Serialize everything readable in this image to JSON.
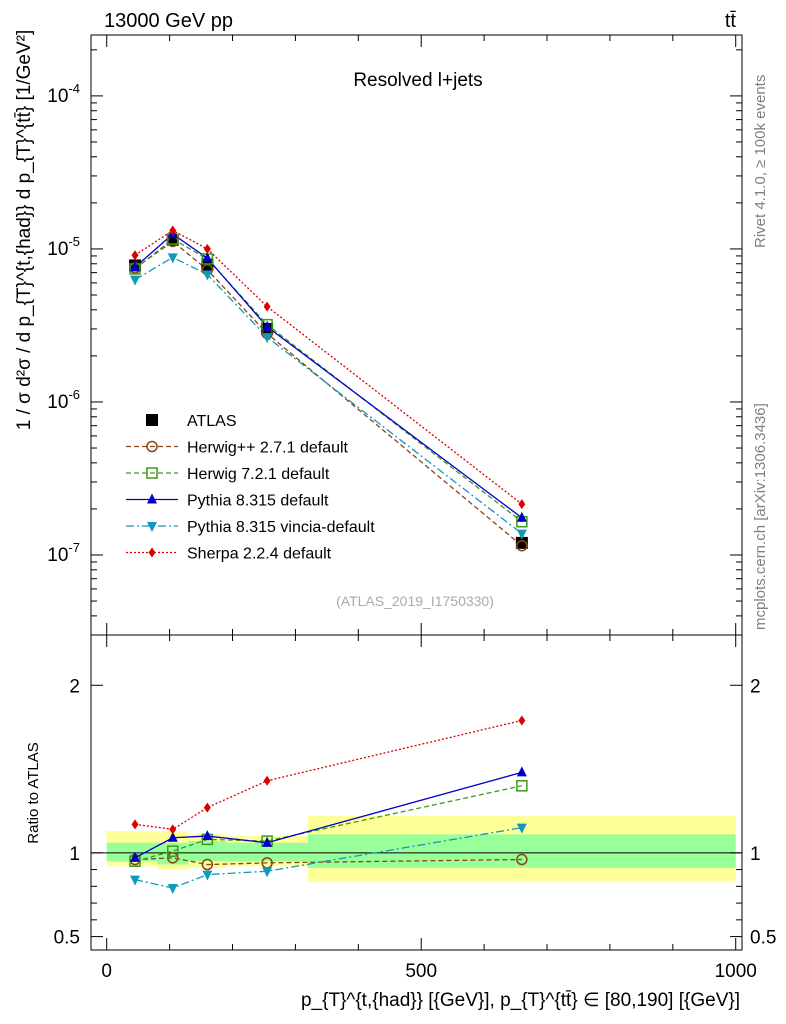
{
  "header": {
    "left": "13000 GeV pp",
    "right": "tt̄"
  },
  "side": {
    "rivet": "Rivet 4.1.0, ≥ 100k events",
    "mcplots": "mcplots.cern.ch [arXiv:1306.3436]"
  },
  "chart_data": [
    {
      "type": "line",
      "title": "Resolved l+jets",
      "watermark": "(ATLAS_2019_I1750330)",
      "ylabel": "1 / σ d²σ / d p_{T}^{t,{had}} d p_{T}^{tt̄} [1/GeV²]",
      "yscale": "log",
      "ylim": [
        3e-08,
        0.00025
      ],
      "xlim": [
        -25,
        1010
      ],
      "y_tick_labels": [
        "10^-7",
        "10^-6",
        "10^-5",
        "10^-4"
      ],
      "y_tick_values": [
        1e-07,
        1e-06,
        1e-05,
        0.0001
      ],
      "x": [
        45,
        105,
        160,
        255,
        660
      ],
      "series": [
        {
          "name": "ATLAS",
          "marker": "square",
          "color": "#000000",
          "values": [
            7.8e-06,
            1.15e-05,
            7.9e-06,
            3e-06,
            1.2e-07
          ]
        },
        {
          "name": "Herwig++ 2.7.1 default",
          "marker": "circle-open",
          "color": "#8B4513",
          "values": [
            7.5e-06,
            1.12e-05,
            7.3e-06,
            2.8e-06,
            1.15e-07
          ]
        },
        {
          "name": "Herwig 7.2.1 default",
          "marker": "square-open",
          "color": "#3a9a1a",
          "values": [
            7.4e-06,
            1.16e-05,
            8.6e-06,
            3.2e-06,
            1.65e-07
          ]
        },
        {
          "name": "Pythia 8.315 default",
          "marker": "triangle-up",
          "color": "#0000cc",
          "values": [
            7.6e-06,
            1.25e-05,
            8.7e-06,
            3.1e-06,
            1.75e-07
          ]
        },
        {
          "name": "Pythia 8.315 vincia-default",
          "marker": "triangle-down",
          "color": "#1199bb",
          "values": [
            6.3e-06,
            8.8e-06,
            6.8e-06,
            2.65e-06,
            1.38e-07
          ]
        },
        {
          "name": "Sherpa 2.2.4 default",
          "marker": "diamond",
          "color": "#dd0000",
          "values": [
            9.1e-06,
            1.32e-05,
            1e-05,
            4.2e-06,
            2.15e-07
          ]
        }
      ]
    },
    {
      "type": "line",
      "ylabel": "Ratio to ATLAS",
      "xlabel": "p_{T}^{t,{had}} [{GeV}], p_{T}^{tt̄} ∈ [80,190] [{GeV}]",
      "ylim": [
        0.42,
        2.3
      ],
      "xlim": [
        -25,
        1010
      ],
      "y_tick_labels": [
        "0.5",
        "1",
        "2"
      ],
      "y_tick_values": [
        0.5,
        1,
        2
      ],
      "x_tick_labels": [
        "0",
        "500",
        "1000"
      ],
      "x_tick_values": [
        0,
        500,
        1000
      ],
      "bin_edges": [
        0,
        80,
        130,
        190,
        320,
        1000
      ],
      "band_stat": [
        [
          0.95,
          1.06
        ],
        [
          0.93,
          1.06
        ],
        [
          0.95,
          1.07
        ],
        [
          0.95,
          1.06
        ],
        [
          0.91,
          1.11
        ]
      ],
      "band_total": [
        [
          0.92,
          1.13
        ],
        [
          0.9,
          1.13
        ],
        [
          0.91,
          1.11
        ],
        [
          0.92,
          1.1
        ],
        [
          0.83,
          1.22
        ]
      ],
      "x": [
        45,
        105,
        160,
        255,
        660
      ],
      "series": [
        {
          "name": "Herwig++ 2.7.1 default",
          "values": [
            0.96,
            0.97,
            0.93,
            0.94,
            0.96
          ]
        },
        {
          "name": "Herwig 7.2.1 default",
          "values": [
            0.95,
            1.01,
            1.08,
            1.07,
            1.4
          ]
        },
        {
          "name": "Pythia 8.315 default",
          "values": [
            0.97,
            1.09,
            1.1,
            1.06,
            1.48
          ]
        },
        {
          "name": "Pythia 8.315 vincia-default",
          "values": [
            0.84,
            0.79,
            0.87,
            0.89,
            1.15
          ]
        },
        {
          "name": "Sherpa 2.2.4 default",
          "values": [
            1.17,
            1.14,
            1.27,
            1.43,
            1.79
          ]
        }
      ]
    }
  ]
}
